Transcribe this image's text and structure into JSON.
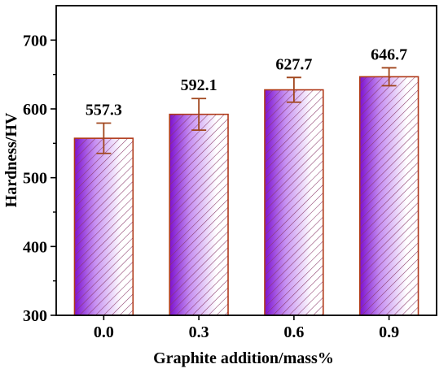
{
  "chart_data": {
    "type": "bar",
    "title": "",
    "xlabel": "Graphite addition/mass%",
    "ylabel": "Hardness/HV",
    "categories": [
      "0.0",
      "0.3",
      "0.6",
      "0.9"
    ],
    "values": [
      557.3,
      592.1,
      627.7,
      646.7
    ],
    "value_labels": [
      "557.3",
      "592.1",
      "627.7",
      "646.7"
    ],
    "error_bars": [
      22,
      23,
      18,
      13
    ],
    "ylim": [
      300,
      750
    ],
    "yticks": [
      300,
      400,
      500,
      600,
      700
    ],
    "ytick_labels": [
      "300",
      "400",
      "500",
      "600",
      "700"
    ],
    "grid": false,
    "legend": "none",
    "colors": {
      "bar_edge": "#b03a1a",
      "error_bar": "#a0451c",
      "gradient": [
        "#7b10d0",
        "#c690f2",
        "#ffffff"
      ],
      "hatch": "#8a3a6a",
      "axis": "#000000"
    }
  }
}
